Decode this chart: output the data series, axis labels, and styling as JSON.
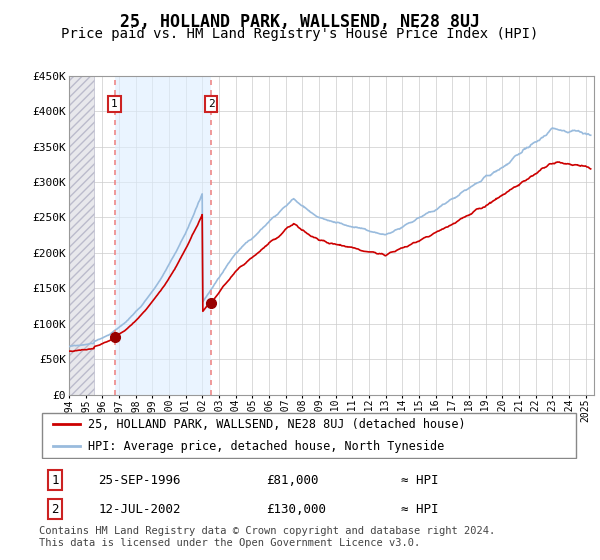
{
  "title": "25, HOLLAND PARK, WALLSEND, NE28 8UJ",
  "subtitle": "Price paid vs. HM Land Registry's House Price Index (HPI)",
  "xlim": [
    1994.0,
    2025.5
  ],
  "ylim": [
    0,
    450000
  ],
  "yticks": [
    0,
    50000,
    100000,
    150000,
    200000,
    250000,
    300000,
    350000,
    400000,
    450000
  ],
  "ytick_labels": [
    "£0",
    "£50K",
    "£100K",
    "£150K",
    "£200K",
    "£250K",
    "£300K",
    "£350K",
    "£400K",
    "£450K"
  ],
  "purchase1_year": 1996.73,
  "purchase1_price": 81000,
  "purchase1_label": "1",
  "purchase1_date": "25-SEP-1996",
  "purchase2_year": 2002.53,
  "purchase2_price": 130000,
  "purchase2_label": "2",
  "purchase2_date": "12-JUL-2002",
  "legend_line1": "25, HOLLAND PARK, WALLSEND, NE28 8UJ (detached house)",
  "legend_line2": "HPI: Average price, detached house, North Tyneside",
  "footer": "Contains HM Land Registry data © Crown copyright and database right 2024.\nThis data is licensed under the Open Government Licence v3.0.",
  "table_row1": [
    "1",
    "25-SEP-1996",
    "£81,000",
    "≈ HPI"
  ],
  "table_row2": [
    "2",
    "12-JUL-2002",
    "£130,000",
    "≈ HPI"
  ],
  "line_color": "#cc0000",
  "hpi_color": "#99bbdd",
  "marker_color": "#990000",
  "dashed_color": "#ee8888",
  "hatch_color": "#ccccdd",
  "shade_color": "#ddeeff",
  "grid_color": "#cccccc",
  "title_fontsize": 12,
  "subtitle_fontsize": 10,
  "tick_fontsize": 8,
  "legend_fontsize": 9
}
